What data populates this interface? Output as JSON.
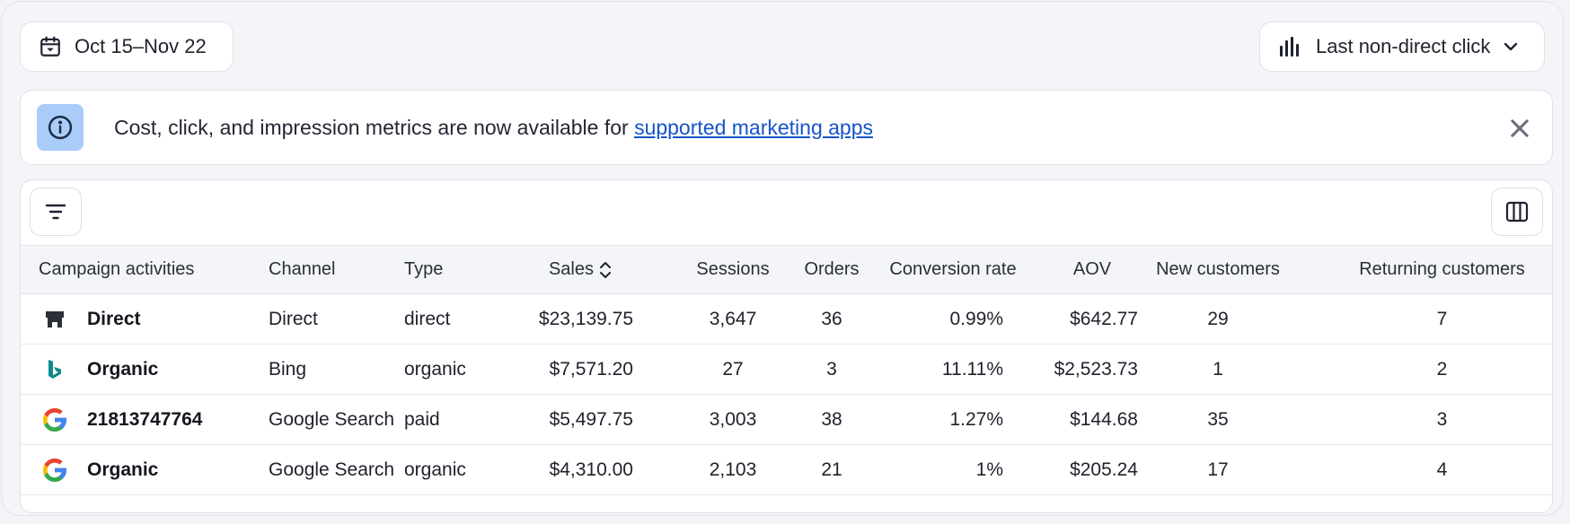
{
  "toolbar": {
    "date_range": "Oct 15–Nov 22",
    "attribution_model": "Last non-direct click"
  },
  "banner": {
    "message": "Cost, click, and impression metrics are now available for ",
    "link_text": "supported marketing apps"
  },
  "table": {
    "columns": [
      "Campaign activities",
      "Channel",
      "Type",
      "Sales",
      "Sessions",
      "Orders",
      "Conversion rate",
      "AOV",
      "New customers",
      "Returning customers"
    ],
    "rows": [
      {
        "icon": "store-icon",
        "campaign": "Direct",
        "channel": "Direct",
        "type": "direct",
        "sales": "$23,139.75",
        "sessions": "3,647",
        "orders": "36",
        "conversion_rate": "0.99%",
        "aov": "$642.77",
        "new_customers": "29",
        "returning_customers": "7"
      },
      {
        "icon": "bing-icon",
        "campaign": "Organic",
        "channel": "Bing",
        "type": "organic",
        "sales": "$7,571.20",
        "sessions": "27",
        "orders": "3",
        "conversion_rate": "11.11%",
        "aov": "$2,523.73",
        "new_customers": "1",
        "returning_customers": "2"
      },
      {
        "icon": "google-icon",
        "campaign": "21813747764",
        "channel": "Google Search",
        "type": "paid",
        "sales": "$5,497.75",
        "sessions": "3,003",
        "orders": "38",
        "conversion_rate": "1.27%",
        "aov": "$144.68",
        "new_customers": "35",
        "returning_customers": "3"
      },
      {
        "icon": "google-icon",
        "campaign": "Organic",
        "channel": "Google Search",
        "type": "organic",
        "sales": "$4,310.00",
        "sessions": "2,103",
        "orders": "21",
        "conversion_rate": "1%",
        "aov": "$205.24",
        "new_customers": "17",
        "returning_customers": "4"
      }
    ]
  },
  "colors": {
    "accent_link": "#1554c8",
    "info_box": "#a9cdf8",
    "bing_teal": "#0f8a8a"
  }
}
